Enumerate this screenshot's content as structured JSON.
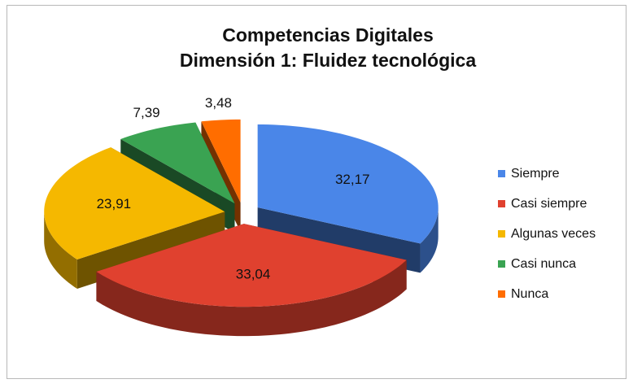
{
  "chart_data": {
    "type": "pie",
    "title": "Competencias Digitales",
    "subtitle": "Dimensión 1: Fluidez tecnológica",
    "categories": [
      "Siempre",
      "Casi siempre",
      "Algunas  veces",
      "Casi nunca",
      "Nunca"
    ],
    "values": [
      32.17,
      33.04,
      23.91,
      7.39,
      3.48
    ],
    "value_labels": [
      "32,17",
      "33,04",
      "23,91",
      "7,39",
      "3,48"
    ],
    "colors": [
      "#4a86e8",
      "#e0412f",
      "#f5b800",
      "#3aa352",
      "#ff6d00"
    ],
    "legend": "right"
  }
}
